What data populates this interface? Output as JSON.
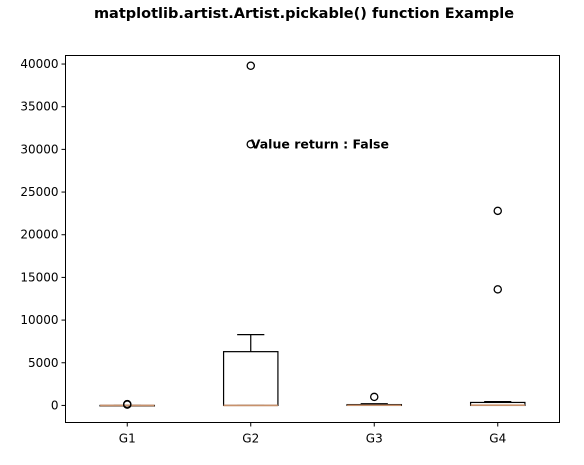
{
  "chart_data": {
    "type": "box",
    "title": "matplotlib.artist.Artist.pickable() function Example",
    "xlabel": "",
    "ylabel": "",
    "categories": [
      "G1",
      "G2",
      "G3",
      "G4"
    ],
    "boxes": [
      {
        "name": "G1",
        "whisker_low": 0,
        "q1": 0,
        "median": 0,
        "q3": 0,
        "whisker_high": 0,
        "fliers": [
          100,
          150
        ]
      },
      {
        "name": "G2",
        "whisker_low": 0,
        "q1": 0,
        "median": 0,
        "q3": 6300,
        "whisker_high": 8300,
        "fliers": [
          30600,
          39800
        ]
      },
      {
        "name": "G3",
        "whisker_low": 0,
        "q1": 0,
        "median": 20,
        "q3": 100,
        "whisker_high": 200,
        "fliers": [
          1000
        ]
      },
      {
        "name": "G4",
        "whisker_low": 0,
        "q1": 0,
        "median": 30,
        "q3": 350,
        "whisker_high": 450,
        "fliers": [
          13600,
          22800
        ]
      }
    ],
    "ylim": [
      -2000,
      41000
    ],
    "yticks": [
      0,
      5000,
      10000,
      15000,
      20000,
      25000,
      30000,
      35000,
      40000
    ],
    "grid": false,
    "colors": {
      "box": "#000000",
      "median": "#c8916b",
      "flier": "#000000"
    },
    "annotation": {
      "text": "Value return : False",
      "x": 2.0,
      "y": 30100
    }
  }
}
